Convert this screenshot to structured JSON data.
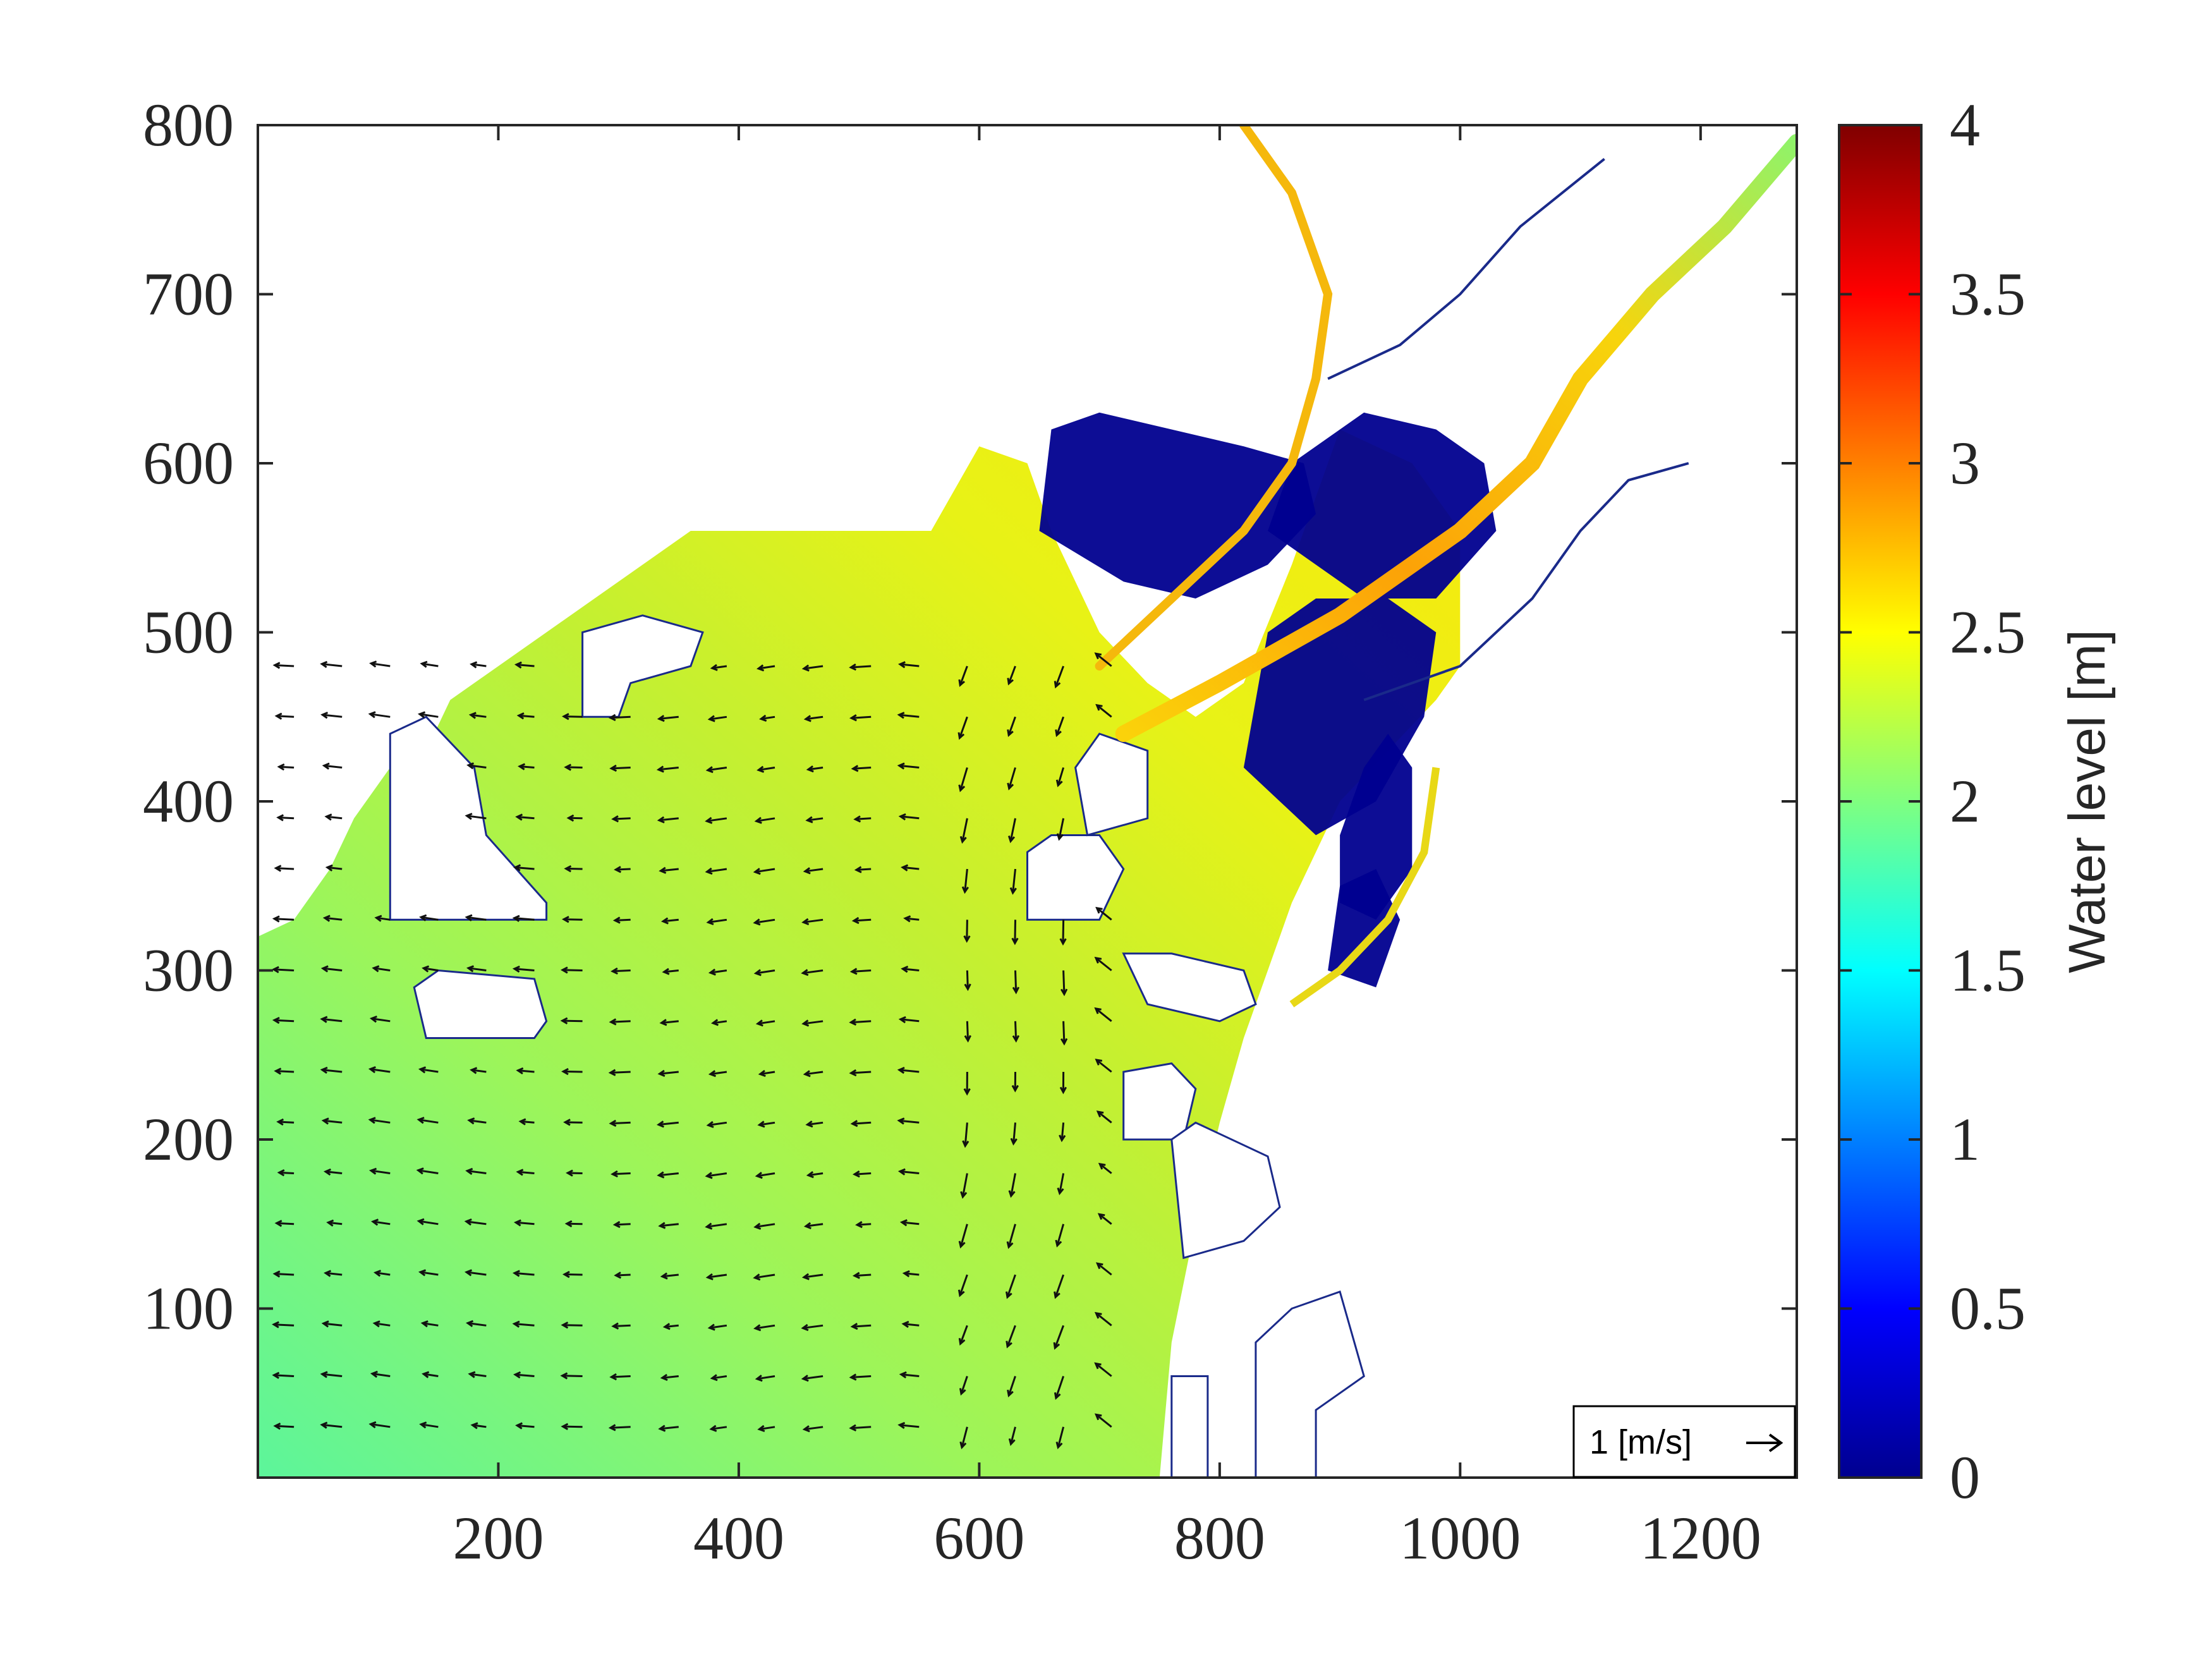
{
  "chart_data": {
    "type": "heatmap",
    "title": "",
    "xlabel": "",
    "ylabel": "",
    "xlim": [
      0,
      1280
    ],
    "ylim": [
      0,
      800
    ],
    "x_ticks": [
      "200",
      "400",
      "600",
      "800",
      "1000",
      "1200"
    ],
    "x_tick_values": [
      200,
      400,
      600,
      800,
      1000,
      1200
    ],
    "y_ticks": [
      "100",
      "200",
      "300",
      "400",
      "500",
      "600",
      "700",
      "800"
    ],
    "y_tick_values": [
      100,
      200,
      300,
      400,
      500,
      600,
      700,
      800
    ],
    "grid": false,
    "colorbar": {
      "label": "Water level [m]",
      "range": [
        0,
        4
      ],
      "ticks": [
        "0",
        "0.5",
        "1",
        "1.5",
        "2",
        "2.5",
        "3",
        "3.5",
        "4"
      ],
      "tick_values": [
        0,
        0.5,
        1,
        1.5,
        2,
        2.5,
        3,
        3.5,
        4
      ],
      "colormap": "jet",
      "colors": [
        "#00008f",
        "#0000ff",
        "#00ffff",
        "#ffff00",
        "#ff0000",
        "#800000"
      ]
    },
    "water_level_samples": [
      {
        "x": 20,
        "y": 50,
        "value": 1.85
      },
      {
        "x": 20,
        "y": 300,
        "value": 1.95
      },
      {
        "x": 200,
        "y": 200,
        "value": 2.05
      },
      {
        "x": 400,
        "y": 400,
        "value": 2.25
      },
      {
        "x": 600,
        "y": 300,
        "value": 2.35
      },
      {
        "x": 720,
        "y": 440,
        "value": 2.6
      },
      {
        "x": 900,
        "y": 500,
        "value": 2.8
      },
      {
        "x": 1000,
        "y": 580,
        "value": 2.85
      },
      {
        "x": 1200,
        "y": 740,
        "value": 2.1
      },
      {
        "x": 850,
        "y": 600,
        "value": 0.05
      }
    ],
    "velocity_field": {
      "grid_x_start": 30,
      "grid_x_step": 40,
      "grid_x_end": 720,
      "grid_y_start": 30,
      "grid_y_step": 30,
      "grid_y_end": 500,
      "dominant_direction": "westward",
      "reference_vector": {
        "label": "1 [m/s]",
        "magnitude": 1,
        "placement": "bottom-right"
      }
    }
  }
}
